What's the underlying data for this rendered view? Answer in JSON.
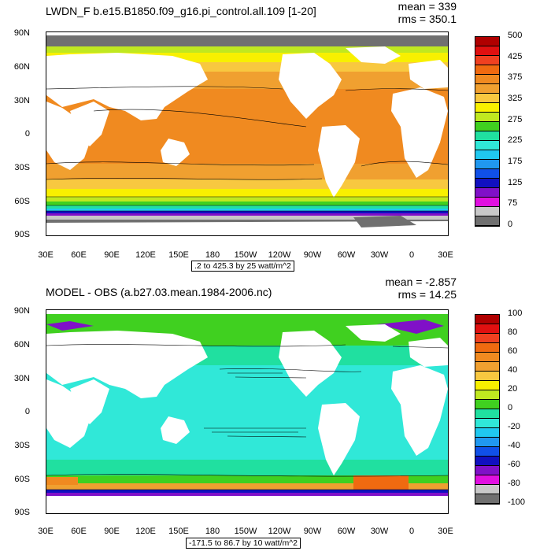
{
  "chart_data": [
    {
      "type": "heatmap",
      "title": "LWDN_F b.e15.B1850.f09_g16.pi_control.all.109 [1-20]",
      "stats": {
        "mean": "mean = 339",
        "rms": "rms = 350.1"
      },
      "range_label": ".2 to 425.3 by 25 watt/m^2",
      "y_ticks": [
        "90N",
        "60N",
        "30N",
        "0",
        "30S",
        "60S",
        "90S"
      ],
      "x_ticks": [
        "30E",
        "60E",
        "90E",
        "120E",
        "150E",
        "180",
        "150W",
        "120W",
        "90W",
        "60W",
        "30W",
        "0",
        "30E"
      ],
      "ylim": [
        -90,
        90
      ],
      "xlim": [
        30,
        390
      ],
      "colorbar_labels": [
        "500",
        "",
        "425",
        "",
        "375",
        "",
        "325",
        "",
        "275",
        "",
        "225",
        "",
        "175",
        "",
        "125",
        "",
        "75",
        "",
        "0"
      ],
      "colorbar_colors": [
        "#b00000",
        "#e01010",
        "#f04020",
        "#f06a10",
        "#f08a20",
        "#f0a030",
        "#f8c840",
        "#f8f000",
        "#c0e820",
        "#40d020",
        "#20e0a0",
        "#30e8d8",
        "#20c8f0",
        "#2098f0",
        "#1050e8",
        "#1010c0",
        "#8010c8",
        "#e010e0",
        "#c8c8c8",
        "#707070"
      ]
    },
    {
      "type": "heatmap",
      "title": "MODEL - OBS (a.b27.03.mean.1984-2006.nc)",
      "stats": {
        "mean": "mean = -2.857",
        "rms": "rms = 14.25"
      },
      "range_label": "-171.5 to 86.7 by 10 watt/m^2",
      "y_ticks": [
        "90N",
        "60N",
        "30N",
        "0",
        "30S",
        "60S",
        "90S"
      ],
      "x_ticks": [
        "30E",
        "60E",
        "90E",
        "120E",
        "150E",
        "180",
        "150W",
        "120W",
        "90W",
        "60W",
        "30W",
        "0",
        "30E"
      ],
      "ylim": [
        -90,
        90
      ],
      "xlim": [
        30,
        390
      ],
      "colorbar_labels": [
        "100",
        "80",
        "60",
        "40",
        "20",
        "0",
        "-20",
        "-40",
        "-60",
        "-80",
        "-100"
      ],
      "colorbar_colors": [
        "#b00000",
        "#e01010",
        "#f04020",
        "#f06a10",
        "#f08a20",
        "#f0a030",
        "#f8c840",
        "#f8f000",
        "#c0e820",
        "#40d020",
        "#20e0a0",
        "#30e8d8",
        "#20c8f0",
        "#2098f0",
        "#1050e8",
        "#1010c0",
        "#8010c8",
        "#e010e0",
        "#c8c8c8",
        "#707070"
      ]
    }
  ]
}
